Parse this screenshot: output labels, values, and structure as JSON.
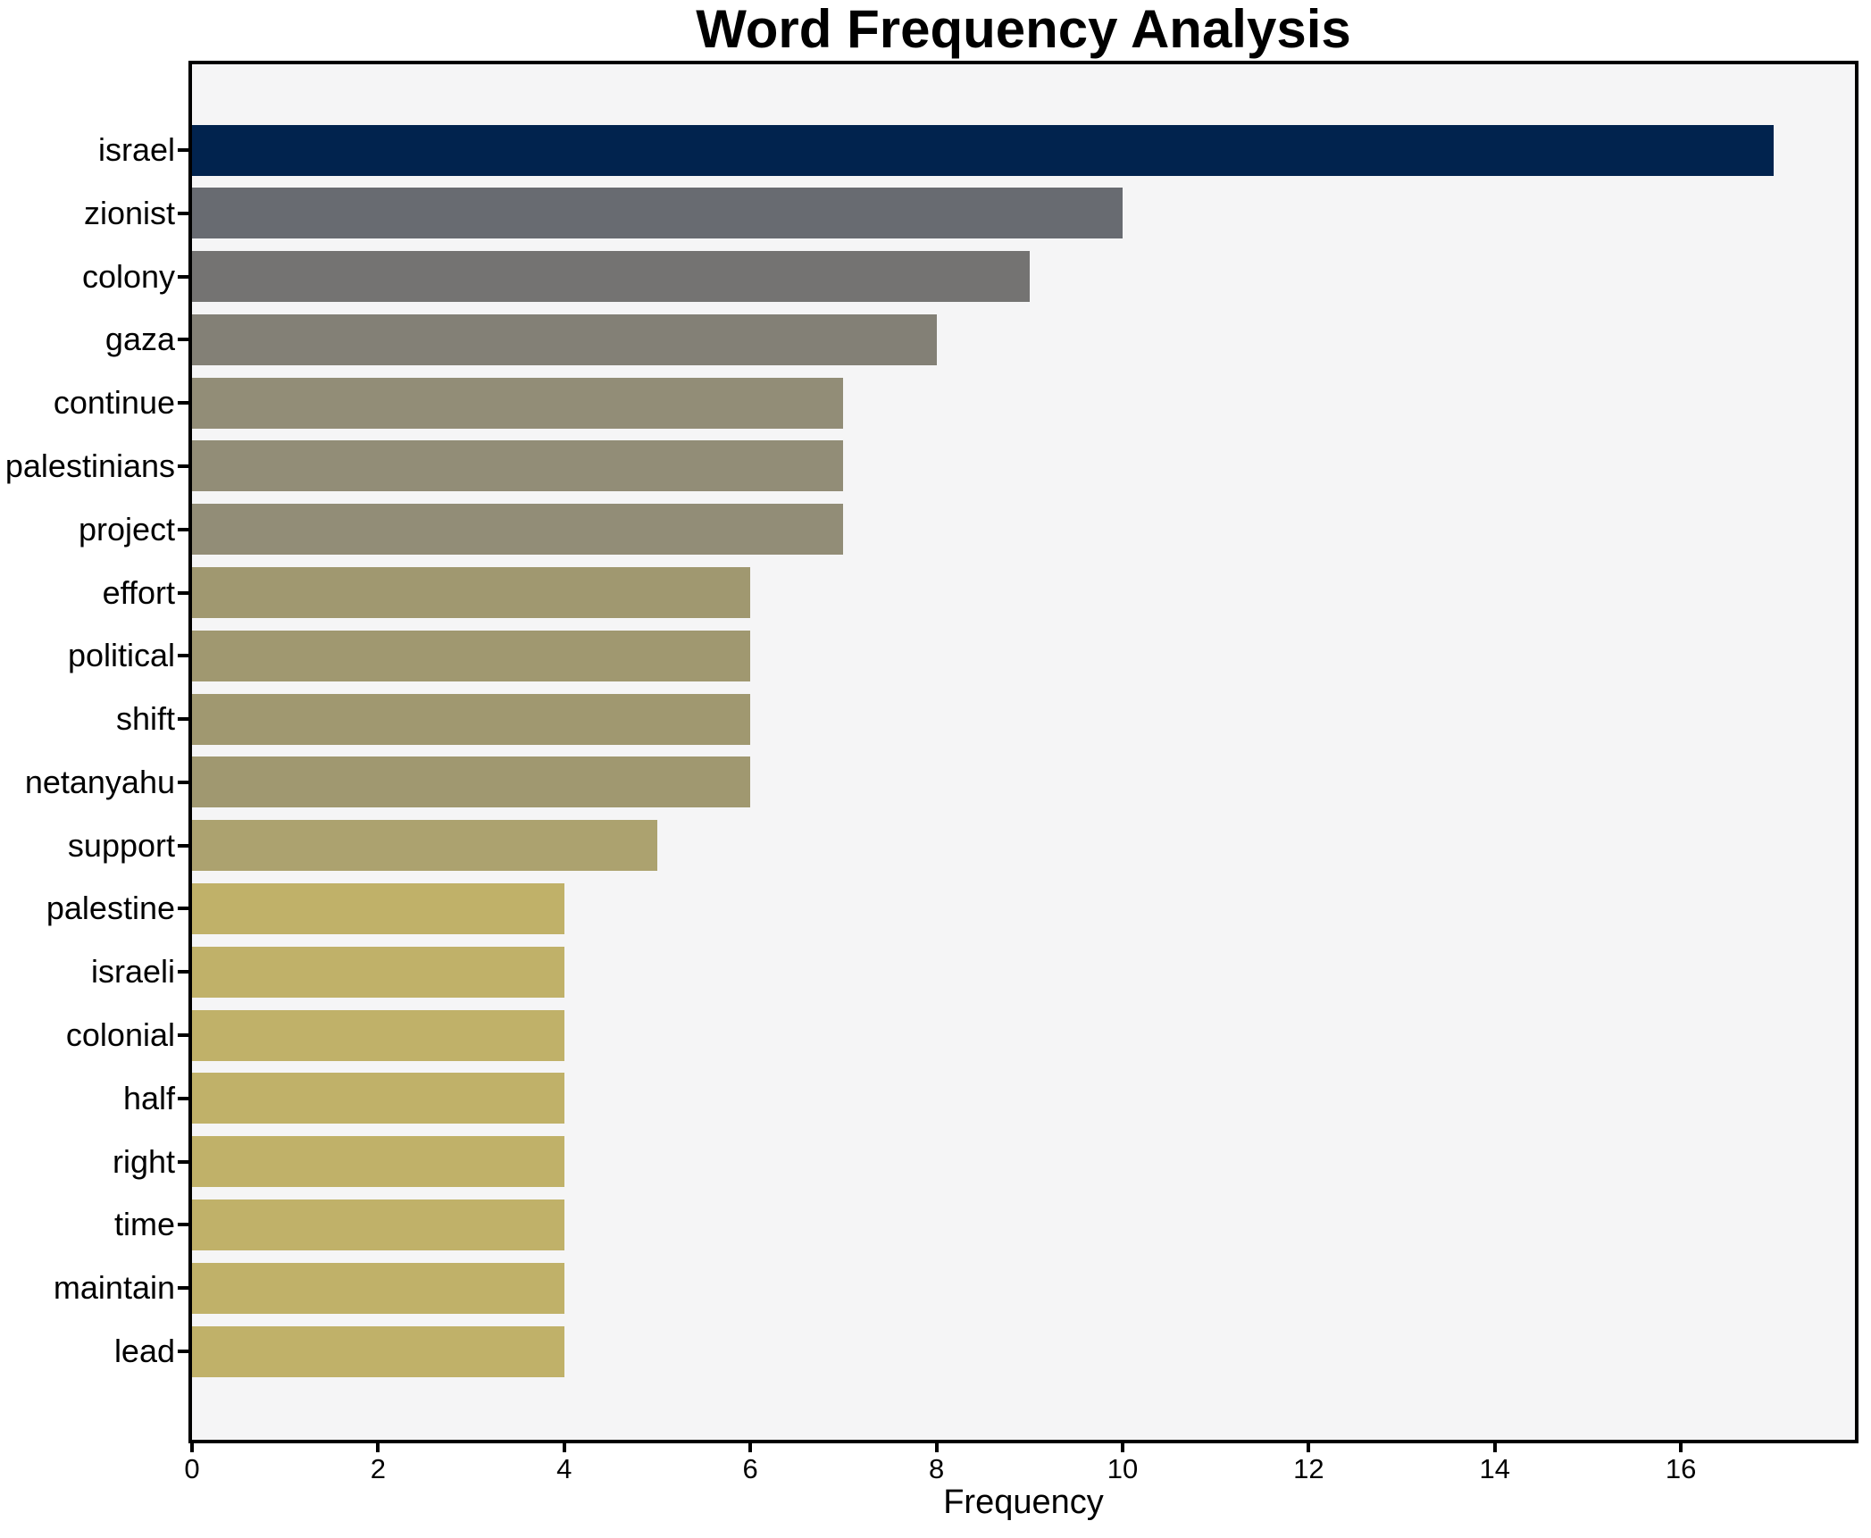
{
  "chart_data": {
    "type": "bar",
    "orientation": "horizontal",
    "title": "Word Frequency Analysis",
    "xlabel": "Frequency",
    "ylabel": "",
    "categories": [
      "israel",
      "zionist",
      "colony",
      "gaza",
      "continue",
      "palestinians",
      "project",
      "effort",
      "political",
      "shift",
      "netanyahu",
      "support",
      "palestine",
      "israeli",
      "colonial",
      "half",
      "right",
      "time",
      "maintain",
      "lead"
    ],
    "values": [
      17,
      10,
      9,
      8,
      7,
      7,
      7,
      6,
      6,
      6,
      6,
      5,
      4,
      4,
      4,
      4,
      4,
      4,
      4,
      4
    ],
    "bar_colors": [
      "#01234e",
      "#686b71",
      "#747372",
      "#838076",
      "#928d77",
      "#928d77",
      "#928d77",
      "#a09870",
      "#a09870",
      "#a09870",
      "#a09870",
      "#aca26f",
      "#c0b169",
      "#c0b169",
      "#c0b169",
      "#c0b169",
      "#c0b169",
      "#c0b169",
      "#c0b169",
      "#c0b169"
    ],
    "x_ticks": [
      0,
      2,
      4,
      6,
      8,
      10,
      12,
      14,
      16
    ],
    "xlim": [
      0,
      17.87
    ],
    "grid": false,
    "legend_position": "none",
    "plot_background": "#f5f5f6",
    "figure_background": "#ffffff",
    "spine_color": "#000000",
    "title_color": "#000000",
    "tick_color": "#000000"
  }
}
